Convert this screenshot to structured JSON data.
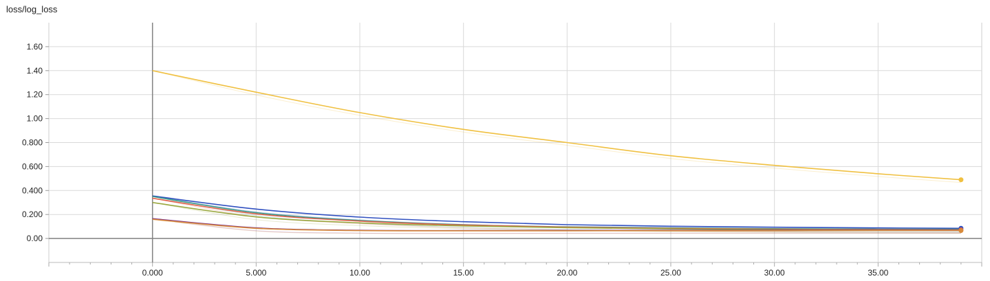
{
  "chart_data": {
    "type": "line",
    "title": "loss/log_loss",
    "xlabel": "",
    "ylabel": "",
    "xlim": [
      -5,
      40
    ],
    "ylim": [
      -0.2,
      1.8
    ],
    "x_ticks": [
      "0.000",
      "5.000",
      "10.00",
      "15.00",
      "20.00",
      "25.00",
      "30.00",
      "35.00"
    ],
    "x_tick_values": [
      0,
      5,
      10,
      15,
      20,
      25,
      30,
      35
    ],
    "y_ticks": [
      "0.00",
      "0.200",
      "0.400",
      "0.600",
      "0.800",
      "1.00",
      "1.20",
      "1.40",
      "1.60"
    ],
    "y_tick_values": [
      0,
      0.2,
      0.4,
      0.6,
      0.8,
      1.0,
      1.2,
      1.4,
      1.6
    ],
    "grid": true,
    "legend": "none",
    "series": [
      {
        "color": "#f0c040",
        "x": [
          0,
          5,
          10,
          15,
          20,
          25,
          30,
          35,
          39
        ],
        "y": [
          1.4,
          1.22,
          1.05,
          0.91,
          0.8,
          0.69,
          0.61,
          0.54,
          0.49
        ],
        "end_marker": true
      },
      {
        "color": "#3050c0",
        "x": [
          0,
          5,
          10,
          15,
          20,
          25,
          30,
          35,
          39
        ],
        "y": [
          0.355,
          0.245,
          0.178,
          0.14,
          0.115,
          0.102,
          0.094,
          0.088,
          0.085
        ],
        "end_marker": true
      },
      {
        "color": "#3a9a8a",
        "x": [
          0,
          5,
          10,
          15,
          20,
          25,
          30,
          35,
          39
        ],
        "y": [
          0.35,
          0.215,
          0.15,
          0.115,
          0.097,
          0.088,
          0.082,
          0.078,
          0.077
        ],
        "end_marker": false
      },
      {
        "color": "#e0604a",
        "x": [
          0,
          5,
          10,
          15,
          20,
          25,
          30,
          35,
          39
        ],
        "y": [
          0.335,
          0.205,
          0.145,
          0.112,
          0.094,
          0.084,
          0.078,
          0.074,
          0.072
        ],
        "end_marker": true
      },
      {
        "color": "#9aa840",
        "x": [
          0,
          5,
          10,
          15,
          20,
          25,
          30,
          35,
          39
        ],
        "y": [
          0.3,
          0.18,
          0.13,
          0.105,
          0.09,
          0.08,
          0.074,
          0.07,
          0.068
        ],
        "end_marker": false
      },
      {
        "color": "#7a2f8a",
        "x": [
          0,
          5,
          10,
          15,
          20,
          25,
          30,
          35,
          39
        ],
        "y": [
          0.165,
          0.088,
          0.068,
          0.066,
          0.067,
          0.068,
          0.068,
          0.068,
          0.068
        ],
        "end_marker": false
      },
      {
        "color": "#d88a3a",
        "x": [
          0,
          5,
          10,
          15,
          20,
          25,
          30,
          35,
          39
        ],
        "y": [
          0.16,
          0.085,
          0.066,
          0.064,
          0.064,
          0.065,
          0.065,
          0.066,
          0.066
        ],
        "end_marker": true
      }
    ]
  }
}
